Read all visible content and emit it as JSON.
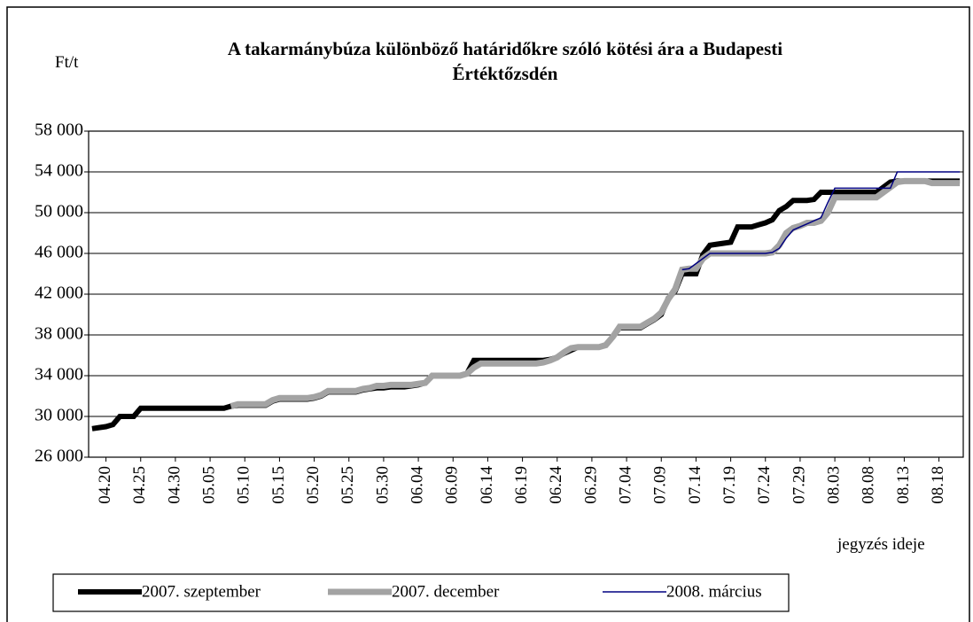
{
  "chart_data": {
    "type": "line",
    "title": "A takarmánybúza különböző határidőkre szóló kötési ára a  Budapesti",
    "title_line2": "Értéktőzsdén",
    "y_label": "Ft/t",
    "x_label": "jegyzés ideje",
    "categories": [
      null,
      null,
      "04.20",
      null,
      null,
      null,
      null,
      "04.25",
      null,
      null,
      null,
      null,
      "04.30",
      null,
      null,
      null,
      null,
      "05.05",
      null,
      null,
      null,
      null,
      "05.10",
      null,
      null,
      null,
      null,
      "05.15",
      null,
      null,
      null,
      null,
      "05.20",
      null,
      null,
      null,
      null,
      "05.25",
      null,
      null,
      null,
      null,
      "05.30",
      null,
      null,
      null,
      null,
      "06.04",
      null,
      null,
      null,
      null,
      "06.09",
      null,
      null,
      null,
      null,
      "06.14",
      null,
      null,
      null,
      null,
      "06.19",
      null,
      null,
      null,
      null,
      "06.24",
      null,
      null,
      null,
      null,
      "06.29",
      null,
      null,
      null,
      null,
      "07.04",
      null,
      null,
      null,
      null,
      "07.09",
      null,
      null,
      null,
      null,
      "07.14",
      null,
      null,
      null,
      null,
      "07.19",
      null,
      null,
      null,
      null,
      "07.24",
      null,
      null,
      null,
      null,
      "07.29",
      null,
      null,
      null,
      null,
      "08.03",
      null,
      null,
      null,
      null,
      "08.08",
      null,
      null,
      null,
      null,
      "08.13",
      null,
      null,
      null,
      null,
      "08.18",
      null,
      null,
      null
    ],
    "series": [
      {
        "name": "2007. szeptember",
        "color": "#000000",
        "width": 6,
        "values": [
          28800,
          28900,
          29000,
          29200,
          30000,
          30000,
          30000,
          30800,
          30800,
          30800,
          30800,
          30800,
          30800,
          30800,
          30800,
          30800,
          30800,
          30800,
          30800,
          30800,
          31000,
          31100,
          31100,
          31100,
          31100,
          31100,
          31500,
          31700,
          31700,
          31700,
          31700,
          31700,
          31800,
          32000,
          32400,
          32400,
          32400,
          32400,
          32400,
          32600,
          32700,
          32800,
          32800,
          32900,
          32900,
          32900,
          33000,
          33100,
          33300,
          34000,
          34000,
          34000,
          34000,
          34000,
          34200,
          35500,
          35500,
          35500,
          35500,
          35500,
          35500,
          35500,
          35500,
          35500,
          35500,
          35500,
          35600,
          35800,
          36200,
          36500,
          36800,
          36800,
          36800,
          36800,
          37000,
          37800,
          38700,
          38700,
          38700,
          38700,
          39100,
          39500,
          40000,
          41600,
          42300,
          44000,
          44000,
          44000,
          45900,
          46800,
          46900,
          47000,
          47100,
          48600,
          48600,
          48600,
          48800,
          49000,
          49300,
          50200,
          50600,
          51200,
          51200,
          51200,
          51300,
          52000,
          52000,
          52000,
          52000,
          52000,
          52000,
          52000,
          52000,
          52000,
          52500,
          53000,
          53100,
          53100,
          53100,
          53100,
          53100,
          53100,
          53100,
          53100,
          53100,
          53100
        ]
      },
      {
        "name": "2007. december",
        "color": "#a3a3a3",
        "width": 7,
        "values": [
          null,
          null,
          null,
          null,
          null,
          null,
          null,
          null,
          null,
          null,
          null,
          null,
          null,
          null,
          null,
          null,
          null,
          null,
          null,
          null,
          31000,
          31200,
          31200,
          31200,
          31200,
          31200,
          31600,
          31800,
          31800,
          31800,
          31800,
          31800,
          31900,
          32100,
          32500,
          32500,
          32500,
          32500,
          32500,
          32700,
          32800,
          33000,
          33000,
          33100,
          33100,
          33100,
          33100,
          33200,
          33300,
          34000,
          34000,
          34000,
          34000,
          34000,
          34200,
          34800,
          35200,
          35200,
          35200,
          35200,
          35200,
          35200,
          35200,
          35200,
          35200,
          35300,
          35500,
          35800,
          36300,
          36700,
          36800,
          36800,
          36800,
          36800,
          37000,
          37800,
          38800,
          38800,
          38800,
          38800,
          39200,
          39600,
          40200,
          41500,
          42500,
          44400,
          44500,
          44500,
          45500,
          46000,
          46000,
          46000,
          46000,
          46000,
          46000,
          46000,
          46000,
          46000,
          46100,
          46800,
          48000,
          48500,
          48700,
          49000,
          49000,
          49200,
          50000,
          51500,
          51500,
          51500,
          51500,
          51500,
          51500,
          51500,
          52000,
          52500,
          53000,
          53100,
          53100,
          53100,
          53100,
          52900,
          52900,
          52900,
          52900,
          52900
        ]
      },
      {
        "name": "2008. március",
        "color": "#000080",
        "width": 1.5,
        "values": [
          null,
          null,
          null,
          null,
          null,
          null,
          null,
          null,
          null,
          null,
          null,
          null,
          null,
          null,
          null,
          null,
          null,
          null,
          null,
          null,
          null,
          null,
          null,
          null,
          null,
          null,
          null,
          null,
          null,
          null,
          null,
          null,
          null,
          null,
          null,
          null,
          null,
          null,
          null,
          null,
          null,
          null,
          null,
          null,
          null,
          null,
          null,
          null,
          null,
          null,
          null,
          null,
          null,
          null,
          null,
          null,
          null,
          null,
          null,
          null,
          null,
          null,
          null,
          null,
          null,
          null,
          null,
          null,
          null,
          null,
          null,
          null,
          null,
          null,
          null,
          null,
          null,
          null,
          null,
          null,
          null,
          null,
          null,
          null,
          null,
          44400,
          44500,
          45000,
          45500,
          46000,
          46000,
          46000,
          46000,
          46000,
          46000,
          46000,
          46000,
          46000,
          46100,
          46500,
          47500,
          48300,
          48600,
          48900,
          49200,
          49500,
          51000,
          52400,
          52400,
          52400,
          52400,
          52400,
          52400,
          52400,
          52400,
          52400,
          54000,
          54000,
          54000,
          54000,
          54000,
          54000,
          54000,
          54000,
          54000,
          54000
        ]
      }
    ],
    "ylim": [
      26000,
      58000
    ],
    "yticks": [
      {
        "value": 26000,
        "label": "26 000"
      },
      {
        "value": 30000,
        "label": "30 000"
      },
      {
        "value": 34000,
        "label": "34 000"
      },
      {
        "value": 38000,
        "label": "38 000"
      },
      {
        "value": 42000,
        "label": "42 000"
      },
      {
        "value": 46000,
        "label": "46 000"
      },
      {
        "value": 50000,
        "label": "50 000"
      },
      {
        "value": 54000,
        "label": "54 000"
      },
      {
        "value": 58000,
        "label": "58 000"
      }
    ],
    "grid": true
  }
}
